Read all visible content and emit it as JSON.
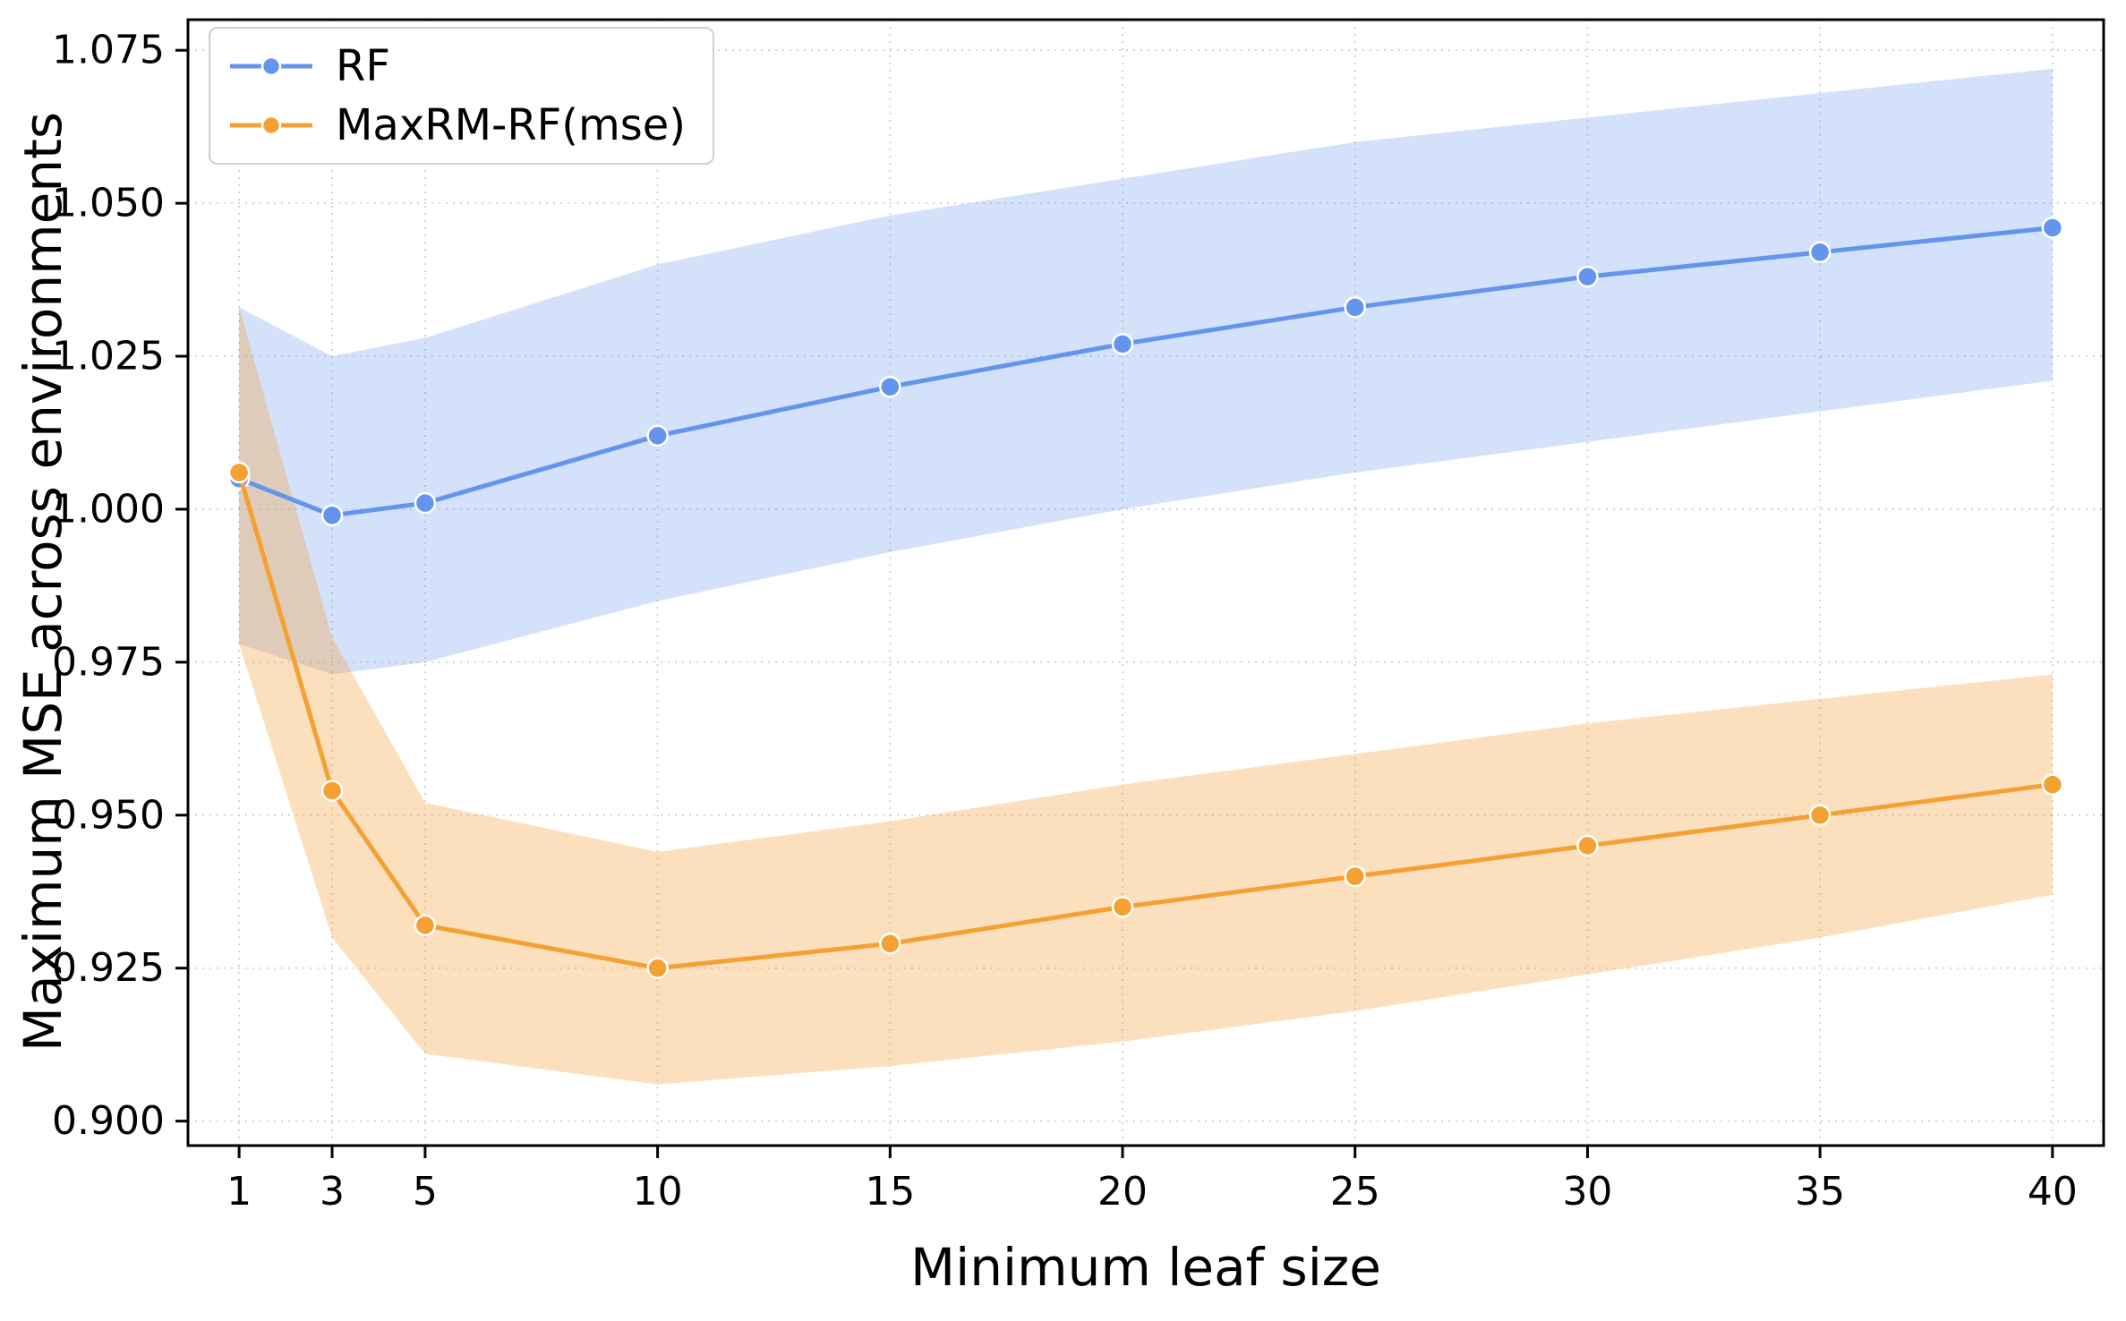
{
  "chart_data": {
    "type": "line",
    "title": "",
    "xlabel": "Minimum leaf size",
    "ylabel": "Maximum MSE across environments",
    "x": [
      1,
      3,
      5,
      10,
      15,
      20,
      25,
      30,
      35,
      40
    ],
    "xticks": [
      1,
      3,
      5,
      10,
      15,
      20,
      25,
      30,
      35,
      40
    ],
    "yticks": [
      0.9,
      0.925,
      0.95,
      0.975,
      1.0,
      1.025,
      1.05,
      1.075
    ],
    "xlim": [
      -0.1,
      41.1
    ],
    "ylim": [
      0.896,
      1.08
    ],
    "grid": true,
    "grid_style": "dotted",
    "legend_position": "upper left",
    "series": [
      {
        "name": "RF",
        "color": "#6495ED",
        "band_alpha": 0.28,
        "values": [
          1.005,
          0.999,
          1.001,
          1.012,
          1.02,
          1.027,
          1.033,
          1.038,
          1.042,
          1.046
        ],
        "band_upper": [
          1.033,
          1.025,
          1.028,
          1.04,
          1.048,
          1.054,
          1.06,
          1.064,
          1.068,
          1.072
        ],
        "band_lower": [
          0.978,
          0.973,
          0.975,
          0.985,
          0.993,
          1.0,
          1.006,
          1.011,
          1.016,
          1.021
        ]
      },
      {
        "name": "MaxRM-RF(mse)",
        "color": "#F5A033",
        "band_alpha": 0.32,
        "values": [
          1.006,
          0.954,
          0.932,
          0.925,
          0.929,
          0.935,
          0.94,
          0.945,
          0.95,
          0.955
        ],
        "band_upper": [
          1.033,
          0.979,
          0.952,
          0.944,
          0.949,
          0.955,
          0.96,
          0.965,
          0.969,
          0.973
        ],
        "band_lower": [
          0.978,
          0.93,
          0.911,
          0.906,
          0.909,
          0.913,
          0.918,
          0.924,
          0.93,
          0.937
        ]
      }
    ]
  }
}
